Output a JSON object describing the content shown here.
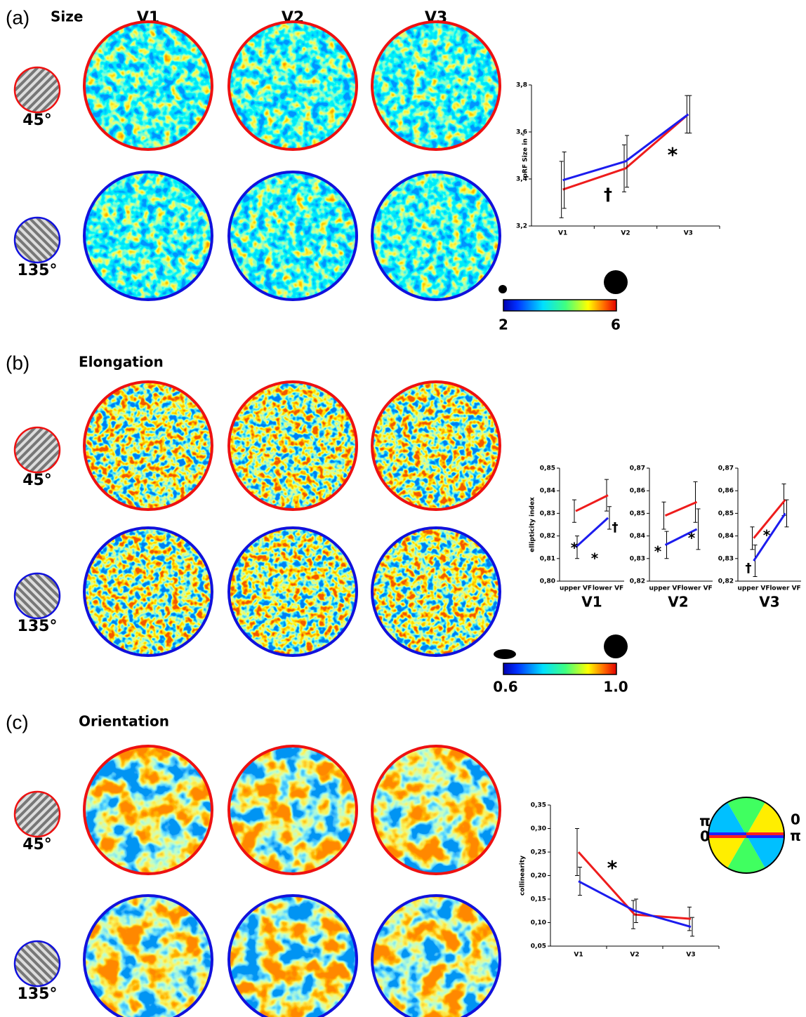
{
  "columns": [
    "V1",
    "V2",
    "V3"
  ],
  "panels": [
    {
      "label": "(a)",
      "title": "Size",
      "stimuli": [
        "45°",
        "135°"
      ],
      "colorbar": [
        "2",
        "6"
      ]
    },
    {
      "label": "(b)",
      "title": "Elongation",
      "stimuli": [
        "45°",
        "135°"
      ],
      "colorbar": [
        "0.6",
        "1.0"
      ]
    },
    {
      "label": "(c)",
      "title": "Orientation",
      "stimuli": [
        "45°",
        "135°"
      ],
      "wheel": [
        "π",
        "0",
        "0",
        "π"
      ]
    }
  ],
  "chart_data": [
    {
      "type": "line",
      "ylabel": "pRF Size in °",
      "categories": [
        "V1",
        "V2",
        "V3"
      ],
      "ylim": [
        3.2,
        3.8
      ],
      "yticks": [
        {
          "value": 3.2,
          "label": "3,2"
        },
        {
          "value": 3.4,
          "label": "3,4"
        },
        {
          "value": 3.6,
          "label": "3,6"
        },
        {
          "value": 3.8,
          "label": "3,8"
        }
      ],
      "series": [
        {
          "color": "#ee1c1c",
          "values": [
            3.355,
            3.445,
            3.675
          ],
          "errors": [
            0.12,
            0.1,
            0.08
          ]
        },
        {
          "color": "#1c1cee",
          "values": [
            3.395,
            3.475,
            3.675
          ],
          "errors": [
            0.12,
            0.11,
            0.08
          ]
        }
      ],
      "annotations": [
        "*",
        "†"
      ]
    },
    {
      "type": "line",
      "ylabel": "ellipticity index",
      "title": "V1",
      "categories": [
        "upper VF",
        "lower VF"
      ],
      "ylim": [
        0.8,
        0.85
      ],
      "yticks": [
        {
          "value": 0.8,
          "label": "0,80"
        },
        {
          "value": 0.81,
          "label": "0,81"
        },
        {
          "value": 0.82,
          "label": "0,82"
        },
        {
          "value": 0.83,
          "label": "0,83"
        },
        {
          "value": 0.84,
          "label": "0,84"
        },
        {
          "value": 0.85,
          "label": "0,85"
        }
      ],
      "series": [
        {
          "color": "#ee1c1c",
          "values": [
            0.831,
            0.838
          ],
          "errors": [
            0.005,
            0.007
          ]
        },
        {
          "color": "#1c1cee",
          "values": [
            0.815,
            0.828
          ],
          "errors": [
            0.005,
            0.005
          ]
        }
      ],
      "annotations": [
        "*",
        "*",
        "†"
      ]
    },
    {
      "type": "line",
      "title": "V2",
      "categories": [
        "upper VF",
        "lower VF"
      ],
      "ylim": [
        0.82,
        0.87
      ],
      "yticks": [
        {
          "value": 0.82,
          "label": "0,82"
        },
        {
          "value": 0.83,
          "label": "0,83"
        },
        {
          "value": 0.84,
          "label": "0,84"
        },
        {
          "value": 0.85,
          "label": "0,85"
        },
        {
          "value": 0.86,
          "label": "0,86"
        },
        {
          "value": 0.87,
          "label": "0,87"
        }
      ],
      "series": [
        {
          "color": "#ee1c1c",
          "values": [
            0.849,
            0.855
          ],
          "errors": [
            0.006,
            0.009
          ]
        },
        {
          "color": "#1c1cee",
          "values": [
            0.836,
            0.843
          ],
          "errors": [
            0.006,
            0.009
          ]
        }
      ],
      "annotations": [
        "*",
        "*"
      ]
    },
    {
      "type": "line",
      "title": "V3",
      "categories": [
        "upper VF",
        "lower VF"
      ],
      "ylim": [
        0.82,
        0.87
      ],
      "yticks": [
        {
          "value": 0.82,
          "label": "0,82"
        },
        {
          "value": 0.83,
          "label": "0,83"
        },
        {
          "value": 0.84,
          "label": "0,84"
        },
        {
          "value": 0.85,
          "label": "0,85"
        },
        {
          "value": 0.86,
          "label": "0,86"
        },
        {
          "value": 0.87,
          "label": "0,87"
        }
      ],
      "series": [
        {
          "color": "#ee1c1c",
          "values": [
            0.839,
            0.856
          ],
          "errors": [
            0.005,
            0.007
          ]
        },
        {
          "color": "#1c1cee",
          "values": [
            0.829,
            0.85
          ],
          "errors": [
            0.007,
            0.006
          ]
        }
      ],
      "annotations": [
        "†",
        "*"
      ]
    },
    {
      "type": "line",
      "ylabel": "collinearity",
      "categories": [
        "V1",
        "V2",
        "V3"
      ],
      "ylim": [
        0.05,
        0.35
      ],
      "yticks": [
        {
          "value": 0.05,
          "label": "0,05"
        },
        {
          "value": 0.1,
          "label": "0,10"
        },
        {
          "value": 0.15,
          "label": "0,15"
        },
        {
          "value": 0.2,
          "label": "0,20"
        },
        {
          "value": 0.25,
          "label": "0,25"
        },
        {
          "value": 0.3,
          "label": "0,30"
        },
        {
          "value": 0.35,
          "label": "0,35"
        }
      ],
      "series": [
        {
          "color": "#ee1c1c",
          "values": [
            0.25,
            0.117,
            0.108
          ],
          "errors": [
            0.05,
            0.03,
            0.025
          ]
        },
        {
          "color": "#1c1cee",
          "values": [
            0.188,
            0.125,
            0.091
          ],
          "errors": [
            0.03,
            0.025,
            0.02
          ]
        }
      ],
      "annotations": [
        "*"
      ]
    }
  ]
}
